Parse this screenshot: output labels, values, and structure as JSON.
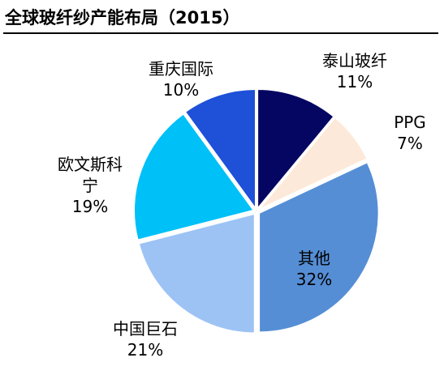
{
  "title": "全球玻纤纱产能布局（2015）",
  "chart_data": {
    "type": "pie",
    "title": "全球玻纤纱产能布局（2015）",
    "slices": [
      {
        "label": "泰山玻纤",
        "value": 11,
        "value_label": "11%",
        "color": "#050562"
      },
      {
        "label": "PPG",
        "value": 7,
        "value_label": "7%",
        "color": "#fde9d9"
      },
      {
        "label": "其他",
        "value": 32,
        "value_label": "32%",
        "color": "#558ed5"
      },
      {
        "label": "中国巨石",
        "value": 21,
        "value_label": "21%",
        "color": "#9dc3f5"
      },
      {
        "label": "欧文斯科宁",
        "value": 19,
        "value_label": "19%",
        "color": "#00c0f8"
      },
      {
        "label": "重庆国际",
        "value": 10,
        "value_label": "10%",
        "color": "#1e50d8"
      }
    ]
  },
  "labels": {
    "taishan": {
      "name": "泰山玻纤",
      "pct": "11%"
    },
    "ppg": {
      "name": "PPG",
      "pct": "7%"
    },
    "other": {
      "name": "其他",
      "pct": "32%"
    },
    "jushi": {
      "name": "中国巨石",
      "pct": "21%"
    },
    "owens": {
      "name_line1": "欧文斯科",
      "name_line2": "宁",
      "pct": "19%"
    },
    "cqi": {
      "name": "重庆国际",
      "pct": "10%"
    }
  }
}
